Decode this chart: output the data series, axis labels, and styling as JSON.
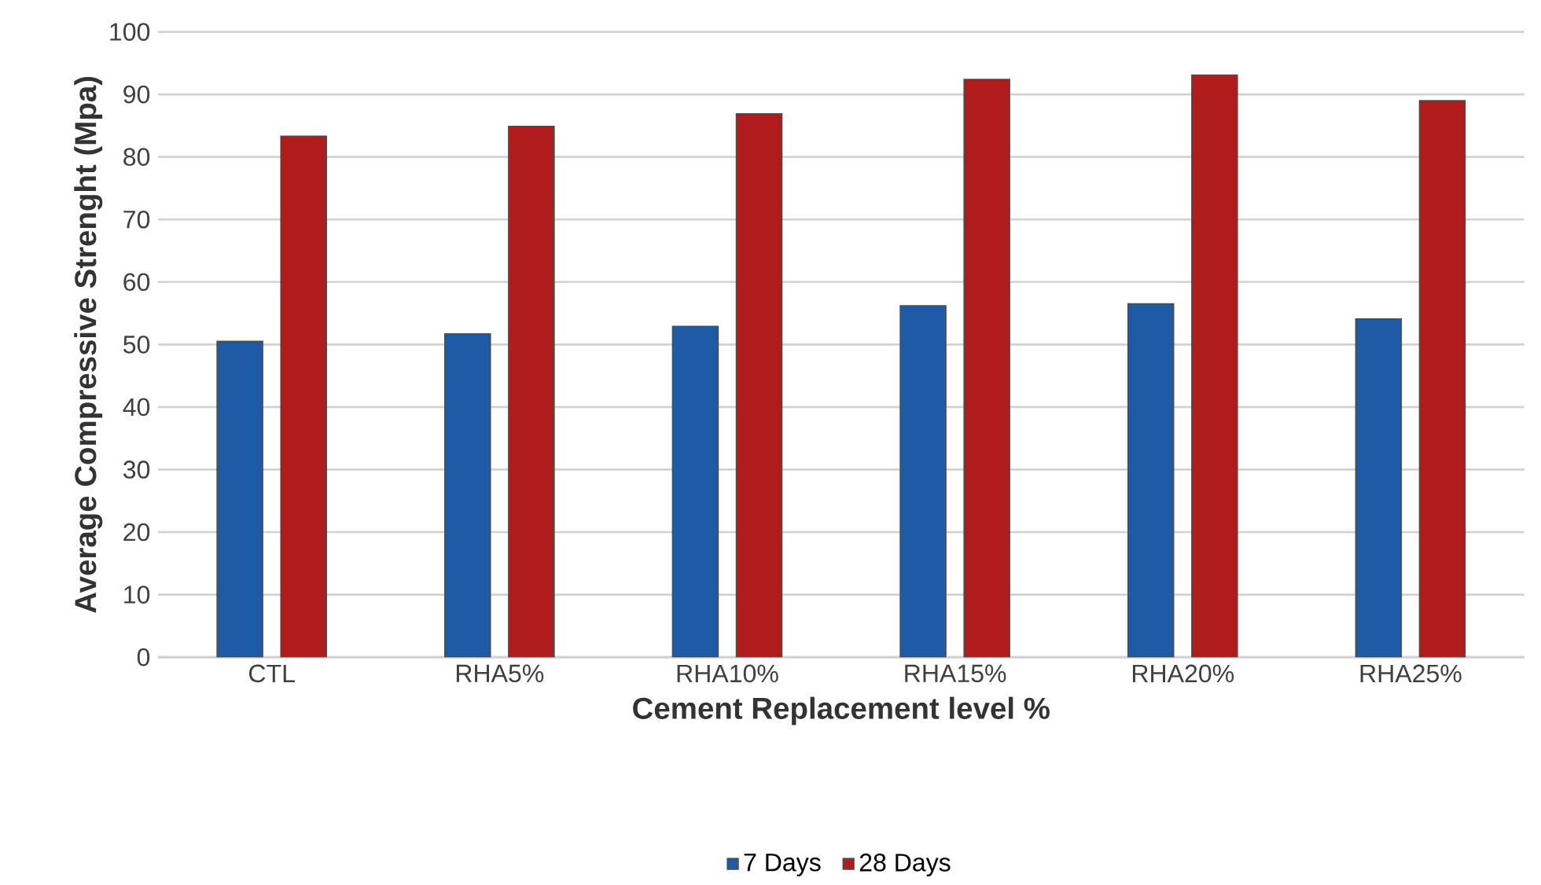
{
  "chart_data": {
    "type": "bar",
    "xlabel": "Cement Replacement level %",
    "ylabel": "Average Compressive Strenght (Mpa)",
    "categories": [
      "CTL",
      "RHA5%",
      "RHA10%",
      "RHA15%",
      "RHA20%",
      "RHA25%"
    ],
    "series": [
      {
        "name": "7 Days",
        "color": "#1f5aa6",
        "values": [
          50.5,
          51.7,
          52.9,
          56.2,
          56.5,
          54.1
        ]
      },
      {
        "name": "28 Days",
        "color": "#b01c1c",
        "values": [
          83.3,
          84.9,
          86.9,
          92.4,
          93.1,
          89.0
        ]
      }
    ],
    "ylim": [
      0,
      100
    ],
    "yticks": [
      0,
      10,
      20,
      30,
      40,
      50,
      60,
      70,
      80,
      90,
      100
    ],
    "grid": "y",
    "legend": "bottom"
  }
}
